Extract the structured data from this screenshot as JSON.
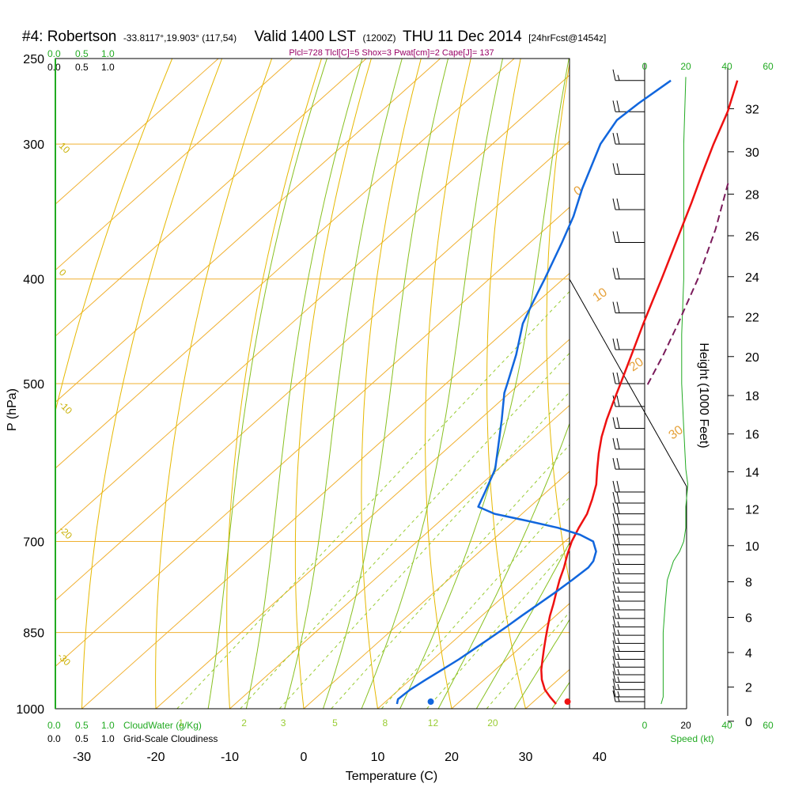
{
  "title": {
    "station": "#4: Robertson",
    "coords": "-33.8117°,19.903° (117,54)",
    "valid": "Valid 1400 LST",
    "utc": "(1200Z)",
    "date": "THU 11 Dec 2014",
    "forecast": "[24hrFcst@1454z]"
  },
  "stats_line": "Plcl=728 Tlcl[C]=5 Shox=3 Pwat[cm]=2 Cape[J]= 137",
  "colors": {
    "isotherm": "#f0b030",
    "dry_adiabat": "#e6b800",
    "moist_adiabat": "#88c020",
    "mixing_ratio": "#99cc33",
    "temperature": "#ee1111",
    "dewpoint": "#1166dd",
    "parcel": "#7a1a5a",
    "green": "#22aa22"
  },
  "chart_data": {
    "type": "line",
    "title": "",
    "xlabel": "Temperature (C)",
    "ylabel": "P (hPa)",
    "y2label": "Height (1000 Feet)",
    "x_ticks": [
      -30,
      -20,
      -10,
      0,
      10,
      20,
      30,
      40
    ],
    "x_tick_labels": [
      "-30",
      "-20",
      "-10",
      "0",
      "10",
      "20",
      "30",
      "40"
    ],
    "p_ticks": [
      250,
      300,
      400,
      500,
      700,
      850,
      1000
    ],
    "p_tick_labels": [
      "250",
      "300",
      "400",
      "500",
      "700",
      "850",
      "1000"
    ],
    "height_ticks": [
      0,
      2,
      4,
      6,
      8,
      10,
      12,
      14,
      16,
      18,
      20,
      22,
      24,
      26,
      28,
      30,
      32
    ],
    "height_tick_labels": [
      "0",
      "2",
      "4",
      "6",
      "8",
      "10",
      "12",
      "14",
      "16",
      "18",
      "20",
      "22",
      "24",
      "26",
      "28",
      "30",
      "32"
    ],
    "xlim": [
      -33,
      35
    ],
    "plim": [
      250,
      1000
    ],
    "series": [
      {
        "kind": "temperature",
        "points": [
          [
            990,
            33.4
          ],
          [
            975,
            31.5
          ],
          [
            960,
            29.7
          ],
          [
            940,
            27.8
          ],
          [
            920,
            26.2
          ],
          [
            900,
            24.8
          ],
          [
            880,
            23.4
          ],
          [
            860,
            22.0
          ],
          [
            840,
            20.6
          ],
          [
            820,
            19.2
          ],
          [
            800,
            17.9
          ],
          [
            780,
            16.5
          ],
          [
            760,
            15.1
          ],
          [
            740,
            13.8
          ],
          [
            720,
            12.3
          ],
          [
            700,
            10.9
          ],
          [
            680,
            9.8
          ],
          [
            660,
            8.8
          ],
          [
            640,
            7.3
          ],
          [
            620,
            5.6
          ],
          [
            600,
            3.4
          ],
          [
            580,
            1.2
          ],
          [
            560,
            -0.9
          ],
          [
            540,
            -2.8
          ],
          [
            520,
            -4.6
          ],
          [
            500,
            -6.4
          ],
          [
            470,
            -9.3
          ],
          [
            440,
            -12.4
          ],
          [
            420,
            -14.5
          ],
          [
            400,
            -16.7
          ],
          [
            370,
            -20.3
          ],
          [
            340,
            -24.2
          ],
          [
            320,
            -27.1
          ],
          [
            300,
            -30.1
          ],
          [
            280,
            -33.1
          ],
          [
            262,
            -36.5
          ]
        ]
      },
      {
        "kind": "dewpoint",
        "points": [
          [
            990,
            11.9
          ],
          [
            980,
            11.3
          ],
          [
            960,
            11.5
          ],
          [
            940,
            12.1
          ],
          [
            920,
            12.8
          ],
          [
            900,
            13.5
          ],
          [
            880,
            14.0
          ],
          [
            860,
            14.5
          ],
          [
            840,
            15.0
          ],
          [
            820,
            15.4
          ],
          [
            800,
            15.9
          ],
          [
            780,
            16.4
          ],
          [
            760,
            16.8
          ],
          [
            740,
            17.1
          ],
          [
            730,
            16.8
          ],
          [
            715,
            15.7
          ],
          [
            700,
            13.8
          ],
          [
            690,
            11.0
          ],
          [
            680,
            7.0
          ],
          [
            670,
            1.8
          ],
          [
            660,
            -3.7
          ],
          [
            650,
            -7.0
          ],
          [
            630,
            -8.3
          ],
          [
            600,
            -10.4
          ],
          [
            570,
            -13.6
          ],
          [
            540,
            -17.0
          ],
          [
            510,
            -20.7
          ],
          [
            500,
            -21.7
          ],
          [
            470,
            -24.9
          ],
          [
            440,
            -28.7
          ],
          [
            420,
            -30.6
          ],
          [
            400,
            -32.5
          ],
          [
            370,
            -35.7
          ],
          [
            350,
            -38.1
          ],
          [
            330,
            -41.1
          ],
          [
            300,
            -45.4
          ],
          [
            285,
            -46.8
          ],
          [
            275,
            -46.4
          ],
          [
            262,
            -45.5
          ]
        ]
      },
      {
        "kind": "parcel",
        "points": [
          [
            501,
            -2.6
          ],
          [
            470,
            -5.0
          ],
          [
            440,
            -7.7
          ],
          [
            400,
            -11.8
          ],
          [
            360,
            -16.9
          ],
          [
            325,
            -22.4
          ]
        ]
      }
    ],
    "surface_points": [
      {
        "kind": "temperature",
        "pressure": 985,
        "value": 34.6
      },
      {
        "kind": "dewpoint",
        "pressure": 985,
        "value": 16.1
      }
    ],
    "isotherms": [
      -110,
      -100,
      -90,
      -80,
      -70,
      -60,
      -50,
      -40,
      -30,
      -20,
      -10,
      0,
      10,
      20,
      30,
      40
    ],
    "dry_adiabats_C": [
      -40,
      -30,
      -20,
      -10,
      0,
      10,
      20,
      30,
      40,
      50,
      60,
      70,
      80,
      90,
      100
    ],
    "dry_adiabat_labels": [
      {
        "text": "10",
        "x_label": 10
      },
      {
        "text": "0",
        "x_label": 0
      },
      {
        "text": "-10",
        "x_label": -10
      },
      {
        "text": "-20",
        "x_label": -20
      },
      {
        "text": "-30",
        "x_label": -30
      }
    ],
    "isotherm_labels": [
      "0",
      "10",
      "20",
      "30"
    ],
    "moist_adiabats_C": [
      -10,
      -5,
      0,
      5,
      10,
      15,
      20,
      25,
      30,
      35
    ],
    "mixing_ratios": [
      1,
      2,
      3,
      5,
      8,
      12,
      20
    ],
    "mixing_ratio_labels": [
      "1",
      "2",
      "3",
      "5",
      "8",
      "12",
      "20"
    ],
    "cloud_water_ticks": [
      "0.0",
      "0.5",
      "1.0"
    ],
    "cloudiness_ticks": [
      "0.0",
      "0.5",
      "1.0"
    ],
    "cloud_water_label": "CloudWater (g/Kg)",
    "cloudiness_label": "Grid-Scale Cloudiness",
    "speed_ticks": [
      0,
      20,
      40,
      60
    ],
    "speed_tick_labels": [
      "0",
      "20",
      "40",
      "60"
    ],
    "speed_label": "Speed (kt)",
    "wind_speed_profile": [
      [
        990,
        8
      ],
      [
        975,
        9
      ],
      [
        950,
        9
      ],
      [
        900,
        9
      ],
      [
        850,
        9
      ],
      [
        800,
        10
      ],
      [
        760,
        11
      ],
      [
        730,
        14
      ],
      [
        715,
        17
      ],
      [
        700,
        19
      ],
      [
        680,
        20
      ],
      [
        650,
        20
      ],
      [
        620,
        21
      ],
      [
        600,
        20
      ],
      [
        550,
        19
      ],
      [
        500,
        18
      ],
      [
        450,
        18
      ],
      [
        400,
        19
      ],
      [
        350,
        19
      ],
      [
        300,
        19
      ],
      [
        260,
        20
      ]
    ],
    "wind_barbs": [
      {
        "pressure": 985,
        "speed": 15
      },
      {
        "pressure": 975,
        "speed": 15
      },
      {
        "pressure": 960,
        "speed": 15
      },
      {
        "pressure": 945,
        "speed": 15
      },
      {
        "pressure": 930,
        "speed": 15
      },
      {
        "pressure": 915,
        "speed": 15
      },
      {
        "pressure": 900,
        "speed": 15
      },
      {
        "pressure": 885,
        "speed": 15
      },
      {
        "pressure": 870,
        "speed": 15
      },
      {
        "pressure": 855,
        "speed": 15
      },
      {
        "pressure": 840,
        "speed": 15
      },
      {
        "pressure": 825,
        "speed": 15
      },
      {
        "pressure": 810,
        "speed": 15
      },
      {
        "pressure": 795,
        "speed": 15
      },
      {
        "pressure": 780,
        "speed": 15
      },
      {
        "pressure": 765,
        "speed": 15
      },
      {
        "pressure": 750,
        "speed": 15
      },
      {
        "pressure": 735,
        "speed": 15
      },
      {
        "pressure": 720,
        "speed": 20
      },
      {
        "pressure": 705,
        "speed": 20
      },
      {
        "pressure": 690,
        "speed": 20
      },
      {
        "pressure": 675,
        "speed": 20
      },
      {
        "pressure": 660,
        "speed": 20
      },
      {
        "pressure": 645,
        "speed": 20
      },
      {
        "pressure": 630,
        "speed": 20
      },
      {
        "pressure": 600,
        "speed": 20
      },
      {
        "pressure": 575,
        "speed": 20
      },
      {
        "pressure": 550,
        "speed": 20
      },
      {
        "pressure": 525,
        "speed": 20
      },
      {
        "pressure": 500,
        "speed": 20
      },
      {
        "pressure": 465,
        "speed": 20
      },
      {
        "pressure": 430,
        "speed": 20
      },
      {
        "pressure": 400,
        "speed": 20
      },
      {
        "pressure": 370,
        "speed": 20
      },
      {
        "pressure": 345,
        "speed": 20
      },
      {
        "pressure": 320,
        "speed": 20
      },
      {
        "pressure": 300,
        "speed": 20
      },
      {
        "pressure": 280,
        "speed": 20
      },
      {
        "pressure": 262,
        "speed": 15
      }
    ]
  }
}
